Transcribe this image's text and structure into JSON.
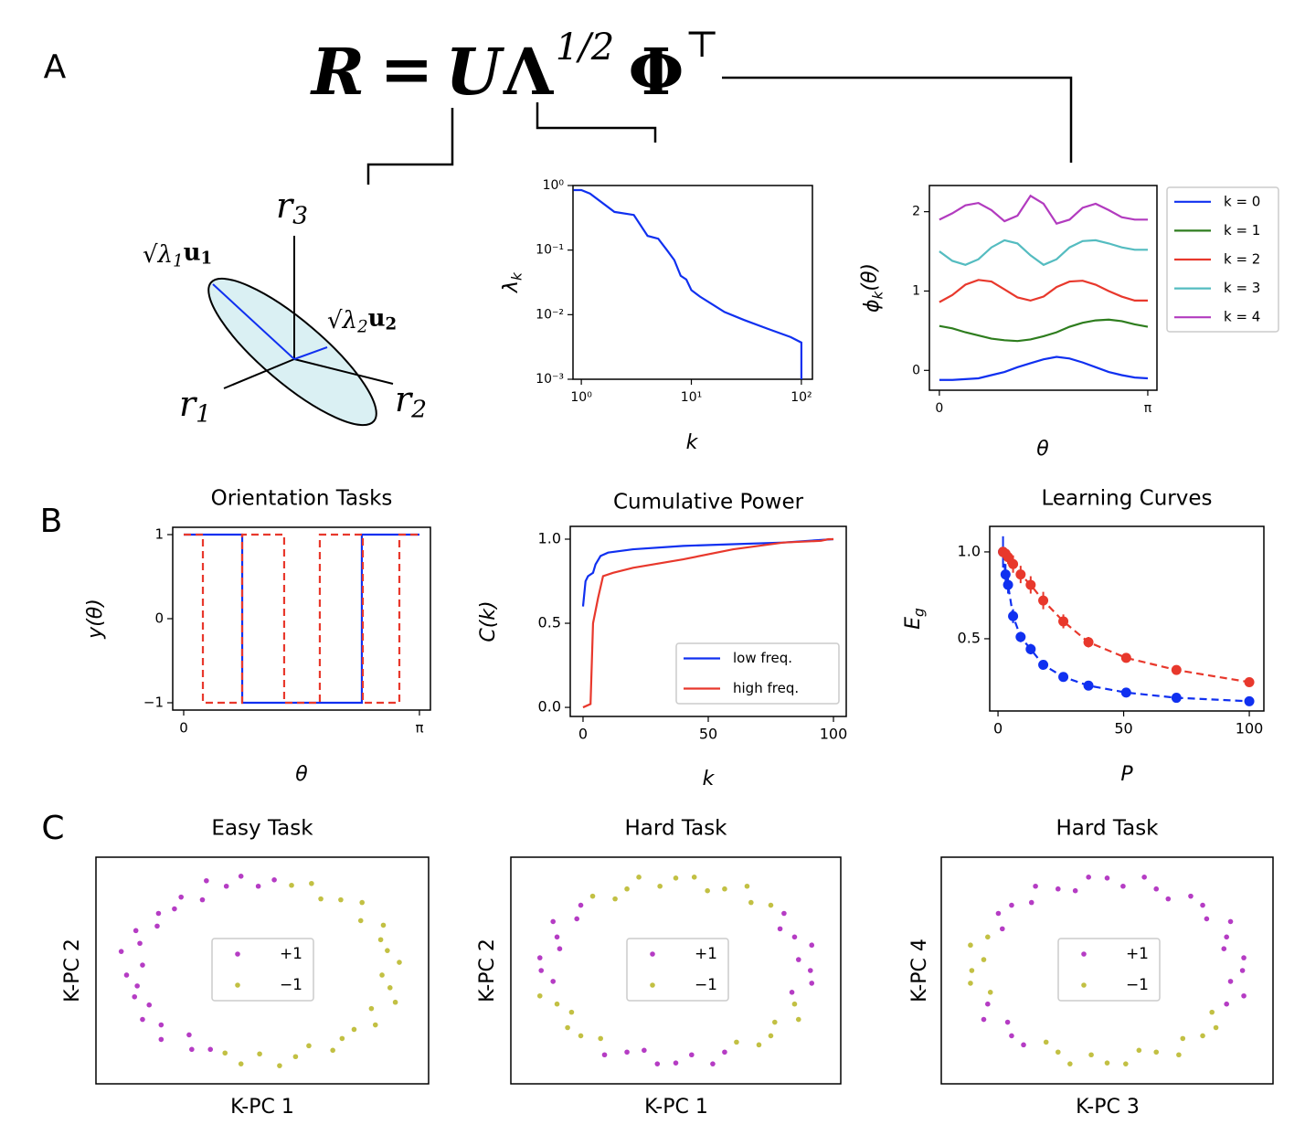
{
  "panels": [
    "A",
    "B",
    "C"
  ],
  "equation": [
    "R",
    "=",
    "U",
    "Λ",
    "1/2",
    "Φ",
    "⊤"
  ],
  "diagram_labels": [
    {
      "main": "r",
      "sub": "3"
    },
    {
      "main": "r",
      "sub": "1"
    },
    {
      "main": "r",
      "sub": "2"
    },
    {
      "root": "√",
      "main": "λ",
      "sub": "1",
      "vec": "u",
      "vec_sub": "1"
    },
    {
      "root": "√",
      "main": "λ",
      "sub": "2",
      "vec": "u",
      "vec_sub": "2"
    }
  ],
  "chart_data": [
    {
      "type": "line",
      "xlabel": "k",
      "ylabel": {
        "main": "λ",
        "sub": "k"
      },
      "xscale": "log",
      "yscale": "log",
      "xlim": [
        0.84,
        126
      ],
      "ylim": [
        0.001,
        1
      ],
      "xticks": [
        {
          "value": 1,
          "label": "10⁰"
        },
        {
          "value": 10,
          "label": "10¹"
        },
        {
          "value": 100,
          "label": "10²"
        }
      ],
      "yticks": [
        {
          "value": 0.001,
          "label": "10⁻³"
        },
        {
          "value": 0.01,
          "label": "10⁻²"
        },
        {
          "value": 0.1,
          "label": "10⁻¹"
        },
        {
          "value": 1,
          "label": "10⁰"
        }
      ],
      "x": [
        0.85,
        1,
        1.2,
        2,
        3,
        4,
        5,
        6,
        7,
        8,
        9,
        10,
        12,
        15,
        20,
        30,
        50,
        80,
        100,
        100
      ],
      "series": [
        {
          "color": "#1030f0",
          "values": [
            0.85,
            0.85,
            0.75,
            0.39,
            0.35,
            0.166,
            0.15,
            0.1,
            0.07,
            0.04,
            0.035,
            0.024,
            0.019,
            0.015,
            0.011,
            0.0083,
            0.006,
            0.0045,
            0.0037,
            0.001
          ]
        }
      ]
    },
    {
      "type": "line",
      "xlabel": "θ",
      "ylabel": {
        "main": "ϕ",
        "sub": "k",
        "tail": "(θ)"
      },
      "xlim": [
        -0.15,
        3.28
      ],
      "ylim": [
        -0.25,
        2.33
      ],
      "xticks": [
        0,
        {
          "value": 3.14159,
          "label": "π"
        }
      ],
      "yticks": [
        0,
        1,
        2
      ],
      "legend": "outside right",
      "x": [
        0,
        0.196,
        0.393,
        0.589,
        0.785,
        0.982,
        1.178,
        1.374,
        1.571,
        1.767,
        1.963,
        2.16,
        2.356,
        2.553,
        2.749,
        2.945,
        3.142
      ],
      "series": [
        {
          "name": "k = 0",
          "color": "#1030f0",
          "values": [
            -0.12,
            -0.12,
            -0.11,
            -0.1,
            -0.06,
            -0.02,
            0.04,
            0.09,
            0.14,
            0.17,
            0.15,
            0.1,
            0.04,
            -0.02,
            -0.06,
            -0.09,
            -0.1
          ]
        },
        {
          "name": "k = 1",
          "color": "#2e7d1e",
          "values": [
            0.56,
            0.53,
            0.48,
            0.44,
            0.4,
            0.38,
            0.37,
            0.39,
            0.43,
            0.48,
            0.55,
            0.6,
            0.63,
            0.64,
            0.62,
            0.58,
            0.55
          ]
        },
        {
          "name": "k = 2",
          "color": "#e8382c",
          "values": [
            0.86,
            0.95,
            1.08,
            1.14,
            1.12,
            1.02,
            0.92,
            0.88,
            0.93,
            1.05,
            1.12,
            1.13,
            1.08,
            1.0,
            0.93,
            0.88,
            0.88
          ]
        },
        {
          "name": "k = 3",
          "color": "#54bcc0",
          "values": [
            1.5,
            1.38,
            1.33,
            1.4,
            1.55,
            1.64,
            1.6,
            1.45,
            1.33,
            1.4,
            1.55,
            1.63,
            1.64,
            1.6,
            1.55,
            1.52,
            1.52
          ]
        },
        {
          "name": "k = 4",
          "color": "#b23bbf",
          "values": [
            1.9,
            1.98,
            2.08,
            2.11,
            2.02,
            1.88,
            1.95,
            2.2,
            2.1,
            1.85,
            1.9,
            2.05,
            2.1,
            2.02,
            1.93,
            1.9,
            1.9
          ]
        }
      ]
    },
    {
      "type": "line",
      "title": "Orientation Tasks",
      "xlabel": "θ",
      "ylabel": "y(θ)",
      "xlim": [
        -0.146,
        3.288
      ],
      "ylim": [
        -1.087,
        1.087
      ],
      "xticks": [
        0,
        {
          "value": 3.14159,
          "label": "π"
        }
      ],
      "yticks": [
        {
          "value": -1,
          "label": "−1"
        },
        0,
        1
      ],
      "series": [
        {
          "color": "#1030f0",
          "x": [
            0,
            0.78,
            0.78,
            2.374,
            2.374,
            3.142
          ],
          "values": [
            1,
            1,
            -1,
            -1,
            1,
            1
          ]
        },
        {
          "color": "#e8382c",
          "linestyle": "dashed",
          "x": [
            0,
            0.256,
            0.256,
            0.779,
            0.779,
            1.339,
            1.339,
            1.814,
            1.814,
            2.387,
            2.387,
            2.874,
            2.874,
            3.142
          ],
          "values": [
            1,
            1,
            -1,
            -1,
            1,
            1,
            -1,
            -1,
            1,
            1,
            -1,
            -1,
            1,
            1
          ]
        }
      ]
    },
    {
      "type": "line",
      "title": "Cumulative Power",
      "xlabel": "k",
      "ylabel": "C(k)",
      "xlim": [
        -5.1,
        105.1
      ],
      "ylim": [
        -0.054,
        1.076
      ],
      "xticks": [
        0,
        50,
        100
      ],
      "yticks": [
        {
          "value": 0,
          "label": "0.0"
        },
        0.5,
        {
          "value": 1,
          "label": "1.0"
        }
      ],
      "legend": "lower right",
      "series": [
        {
          "name": "low freq.",
          "color": "#1030f0",
          "x": [
            0,
            1,
            2,
            4,
            5,
            7,
            10,
            20,
            40,
            60,
            80,
            90,
            100
          ],
          "values": [
            0.6,
            0.75,
            0.78,
            0.8,
            0.85,
            0.9,
            0.92,
            0.94,
            0.96,
            0.97,
            0.98,
            0.99,
            1.0
          ]
        },
        {
          "name": "high freq.",
          "color": "#e8382c",
          "x": [
            0,
            3,
            4,
            6,
            8,
            12,
            20,
            40,
            60,
            80,
            95,
            98,
            100
          ],
          "values": [
            0.0,
            0.02,
            0.5,
            0.65,
            0.78,
            0.8,
            0.83,
            0.88,
            0.94,
            0.98,
            0.99,
            1.0,
            1.0
          ]
        }
      ]
    },
    {
      "type": "errorbar",
      "title": "Learning Curves",
      "xlabel": "P",
      "ylabel": {
        "main": "E",
        "sub": "g"
      },
      "xlim": [
        -3.3,
        105.8
      ],
      "ylim": [
        0.084,
        1.147
      ],
      "xticks": [
        0,
        50,
        100
      ],
      "yticks": [
        0.5,
        {
          "value": 1,
          "label": "1.0"
        }
      ],
      "x": [
        2,
        3,
        4,
        6,
        9,
        13,
        18,
        26,
        36,
        51,
        71,
        100
      ],
      "series": [
        {
          "color": "#1030f0",
          "linestyle": "dashed",
          "values": [
            1.0,
            0.87,
            0.81,
            0.63,
            0.51,
            0.44,
            0.35,
            0.28,
            0.23,
            0.19,
            0.16,
            0.14
          ],
          "errors": [
            0.09,
            0.06,
            0.05,
            0.04,
            0.03,
            0.03,
            0.02,
            0.02,
            0.01,
            0.01,
            0.01,
            0.01
          ]
        },
        {
          "color": "#e8382c",
          "linestyle": "dashed",
          "values": [
            1.0,
            0.99,
            0.97,
            0.93,
            0.87,
            0.81,
            0.72,
            0.6,
            0.48,
            0.39,
            0.32,
            0.25
          ],
          "errors": [
            0.03,
            0.03,
            0.04,
            0.05,
            0.05,
            0.05,
            0.05,
            0.04,
            0.03,
            0.02,
            0.01,
            0.01
          ]
        }
      ]
    },
    {
      "type": "scatter",
      "title": "Easy Task",
      "xlabel": "K-PC 1",
      "ylabel": "K-PC 2",
      "xlim": [
        -1.25,
        1.25
      ],
      "ylim": [
        -1.25,
        1.25
      ],
      "legend": "center",
      "series": [
        {
          "name": "+1",
          "color": "#b53cc4",
          "x": [
            0.09,
            -0.03,
            -0.16,
            -0.27,
            -0.42,
            -0.45,
            -0.61,
            -0.66,
            -0.78,
            -0.79,
            -0.95,
            -0.92,
            -1.06,
            -0.9,
            -1.02,
            -0.94,
            -0.96,
            -0.85,
            -0.9,
            -0.76,
            -0.76,
            -0.55,
            -0.53,
            -0.39
          ],
          "values": [
            1.0,
            0.93,
            1.04,
            0.93,
            0.99,
            0.78,
            0.81,
            0.68,
            0.63,
            0.49,
            0.44,
            0.3,
            0.21,
            0.06,
            -0.05,
            -0.17,
            -0.29,
            -0.38,
            -0.54,
            -0.6,
            -0.76,
            -0.71,
            -0.87,
            -0.87
          ]
        },
        {
          "name": "−1",
          "color": "#c2c043",
          "x": [
            -0.28,
            -0.16,
            -0.02,
            0.13,
            0.25,
            0.35,
            0.53,
            0.6,
            0.69,
            0.85,
            0.82,
            1.0,
            0.96,
            0.9,
            1.03,
            0.94,
            0.89,
            0.91,
            0.74,
            0.75,
            0.59,
            0.44,
            0.37,
            0.22
          ],
          "values": [
            -0.91,
            -1.03,
            -0.92,
            -1.05,
            -0.95,
            -0.83,
            -0.88,
            -0.75,
            -0.65,
            -0.6,
            -0.42,
            -0.35,
            -0.19,
            -0.05,
            0.09,
            0.22,
            0.34,
            0.5,
            0.55,
            0.75,
            0.78,
            0.79,
            0.96,
            0.94
          ]
        }
      ]
    },
    {
      "type": "scatter",
      "title": "Hard Task",
      "xlabel": "K-PC 1",
      "ylabel": "K-PC 2",
      "xlim": [
        -1.25,
        1.25
      ],
      "ylim": [
        -1.25,
        1.25
      ],
      "legend": "center",
      "series": [
        {
          "name": "+1",
          "color": "#b53cc4",
          "x": [
            1.02,
            0.93,
            1.03,
            0.9,
            0.79,
            0.82,
            -0.72,
            -0.75,
            -0.93,
            -0.9,
            -0.88,
            -1.03,
            -1.02,
            -0.93,
            -0.54,
            -0.37,
            -0.24,
            -0.14,
            0,
            0.12,
            0.28,
            0.37,
            0.88,
            1.03
          ],
          "values": [
            0,
            0.12,
            0.28,
            0.37,
            0.46,
            0.63,
            0.72,
            0.57,
            0.54,
            0.37,
            0.24,
            0.14,
            0,
            -0.12,
            -0.93,
            -0.9,
            -0.88,
            -1.03,
            -1.02,
            -0.93,
            -1.03,
            -0.9,
            -0.24,
            -0.14
          ]
        },
        {
          "name": "−1",
          "color": "#c2c043",
          "x": [
            0.72,
            0.57,
            0.54,
            0.37,
            0.24,
            0.14,
            0,
            -0.12,
            -0.28,
            -0.37,
            -0.46,
            -0.63,
            -1.03,
            -0.9,
            -0.79,
            -0.82,
            -0.72,
            -0.57,
            0.46,
            0.63,
            0.72,
            0.75,
            0.93,
            0.9
          ],
          "values": [
            0.72,
            0.75,
            0.93,
            0.9,
            0.88,
            1.03,
            1.02,
            0.93,
            1.03,
            0.9,
            0.79,
            0.82,
            -0.28,
            -0.37,
            -0.46,
            -0.63,
            -0.72,
            -0.75,
            -0.79,
            -0.82,
            -0.72,
            -0.57,
            -0.54,
            -0.37
          ]
        }
      ]
    },
    {
      "type": "scatter",
      "title": "Hard Task",
      "xlabel": "K-PC 3",
      "ylabel": "K-PC 4",
      "xlim": [
        -1.25,
        1.25
      ],
      "ylim": [
        -1.25,
        1.25
      ],
      "legend": "center",
      "series": [
        {
          "name": "+1",
          "color": "#b53cc4",
          "x": [
            -0.79,
            -0.82,
            -0.72,
            -0.57,
            -0.54,
            -0.37,
            -0.24,
            -0.14,
            0,
            0.12,
            0.28,
            0.37,
            0.46,
            0.63,
            0.72,
            0.75,
            0.93,
            0.9,
            0.88,
            1.03,
            1.02,
            0.93,
            1.03,
            0.9,
            -0.63,
            -0.72,
            -0.75,
            -0.93,
            -0.9
          ],
          "values": [
            0.46,
            0.63,
            0.72,
            0.75,
            0.93,
            0.9,
            0.88,
            1.03,
            1.02,
            0.93,
            1.03,
            0.9,
            0.79,
            0.82,
            0.72,
            0.57,
            0.54,
            0.37,
            0.24,
            0.14,
            0,
            -0.12,
            -0.28,
            -0.37,
            -0.82,
            -0.72,
            -0.57,
            -0.54,
            -0.37
          ]
        },
        {
          "name": "−1",
          "color": "#c2c043",
          "x": [
            -1.02,
            -0.93,
            -1.03,
            -0.9,
            0.79,
            0.82,
            0.72,
            0.57,
            0.54,
            0.37,
            0.24,
            0.14,
            0,
            -0.12,
            -0.28,
            -0.37,
            -0.46,
            -0.88,
            -1.03
          ],
          "values": [
            0,
            0.12,
            0.28,
            0.37,
            -0.46,
            -0.63,
            -0.72,
            -0.75,
            -0.93,
            -0.9,
            -0.88,
            -1.03,
            -1.02,
            -0.93,
            -1.03,
            -0.9,
            -0.79,
            -0.24,
            -0.14
          ]
        }
      ]
    }
  ]
}
